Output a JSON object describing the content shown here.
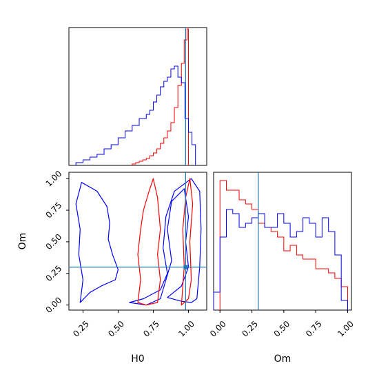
{
  "chart_data": {
    "type": "corner",
    "colors": {
      "red": "#ff0000",
      "blue": "#0000ff",
      "truth": "#1f77b4"
    },
    "truth": {
      "H0": 0.98,
      "Om": 0.3
    },
    "panels": [
      {
        "id": "hist-H0",
        "type": "histogram",
        "xlim": [
          0.15,
          1.13
        ],
        "ylim": [
          0,
          1.0
        ],
        "series": [
          {
            "color": "red",
            "bin_edges": [
              0.6,
              0.625,
              0.65,
              0.675,
              0.7,
              0.725,
              0.75,
              0.775,
              0.8,
              0.825,
              0.85,
              0.875,
              0.9,
              0.925,
              0.95,
              0.97,
              0.99,
              1.0
            ],
            "counts": [
              0.01,
              0.02,
              0.03,
              0.04,
              0.05,
              0.07,
              0.09,
              0.12,
              0.16,
              0.2,
              0.25,
              0.31,
              0.42,
              0.58,
              0.74,
              0.91,
              0.99
            ]
          },
          {
            "color": "blue",
            "bin_edges": [
              0.2,
              0.25,
              0.3,
              0.35,
              0.4,
              0.45,
              0.5,
              0.55,
              0.6,
              0.65,
              0.7,
              0.725,
              0.75,
              0.775,
              0.8,
              0.825,
              0.85,
              0.875,
              0.9,
              0.925,
              0.95,
              0.975,
              1.0,
              1.025,
              1.05
            ],
            "counts": [
              0.02,
              0.04,
              0.06,
              0.08,
              0.12,
              0.15,
              0.2,
              0.25,
              0.29,
              0.34,
              0.37,
              0.4,
              0.46,
              0.51,
              0.57,
              0.61,
              0.64,
              0.7,
              0.72,
              0.64,
              0.6,
              0.34,
              0.24,
              0.15
            ]
          }
        ]
      },
      {
        "id": "contour-H0-Om",
        "type": "contour",
        "xlim": [
          0.15,
          1.13
        ],
        "ylim": [
          -0.04,
          1.05
        ],
        "xlabel": "H0",
        "ylabel": "Om",
        "xticks": [
          "0.25",
          "0.50",
          "0.75",
          "1.00"
        ],
        "yticks": [
          "0.00",
          "0.25",
          "0.50",
          "0.75",
          "1.00"
        ],
        "blue_outer": [
          [
            0.23,
            0.02
          ],
          [
            0.3,
            0.1
          ],
          [
            0.38,
            0.15
          ],
          [
            0.48,
            0.2
          ],
          [
            0.5,
            0.28
          ],
          [
            0.46,
            0.4
          ],
          [
            0.43,
            0.52
          ],
          [
            0.44,
            0.65
          ],
          [
            0.42,
            0.78
          ],
          [
            0.35,
            0.9
          ],
          [
            0.24,
            0.97
          ],
          [
            0.2,
            0.8
          ],
          [
            0.23,
            0.6
          ],
          [
            0.22,
            0.4
          ],
          [
            0.25,
            0.2
          ],
          [
            0.23,
            0.02
          ]
        ],
        "blue_inner": [
          [
            0.58,
            0.02
          ],
          [
            0.68,
            0.05
          ],
          [
            0.8,
            0.12
          ],
          [
            0.85,
            0.25
          ],
          [
            0.82,
            0.45
          ],
          [
            0.84,
            0.7
          ],
          [
            0.9,
            0.9
          ],
          [
            1.02,
            1.0
          ],
          [
            1.08,
            0.9
          ],
          [
            1.09,
            0.6
          ],
          [
            1.08,
            0.3
          ],
          [
            1.06,
            0.05
          ],
          [
            1.02,
            0.02
          ],
          [
            0.95,
            0.03
          ],
          [
            0.85,
            0.06
          ],
          [
            0.95,
            0.15
          ],
          [
            1.0,
            0.3
          ],
          [
            0.98,
            0.5
          ],
          [
            1.0,
            0.7
          ],
          [
            0.97,
            0.92
          ],
          [
            0.88,
            0.82
          ],
          [
            0.85,
            0.6
          ],
          [
            0.88,
            0.35
          ],
          [
            0.8,
            0.05
          ],
          [
            0.7,
            0.0
          ],
          [
            0.58,
            0.02
          ]
        ],
        "red_outer": [
          [
            0.64,
            0.02
          ],
          [
            0.66,
            0.2
          ],
          [
            0.64,
            0.4
          ],
          [
            0.66,
            0.6
          ],
          [
            0.68,
            0.75
          ],
          [
            0.72,
            0.9
          ],
          [
            0.75,
            1.0
          ],
          [
            0.78,
            0.85
          ],
          [
            0.8,
            0.6
          ],
          [
            0.78,
            0.4
          ],
          [
            0.8,
            0.2
          ],
          [
            0.78,
            0.02
          ],
          [
            0.7,
            0.0
          ],
          [
            0.64,
            0.02
          ]
        ],
        "red_inner": [
          [
            0.95,
            0.0
          ],
          [
            1.0,
            0.05
          ],
          [
            1.02,
            0.2
          ],
          [
            1.01,
            0.5
          ],
          [
            1.03,
            0.8
          ],
          [
            1.01,
            1.0
          ],
          [
            0.98,
            0.85
          ],
          [
            0.96,
            0.6
          ],
          [
            0.97,
            0.3
          ],
          [
            0.95,
            0.0
          ]
        ]
      },
      {
        "id": "hist-Om",
        "type": "histogram",
        "xlim": [
          -0.05,
          1.03
        ],
        "ylim": [
          0,
          1.0
        ],
        "xlabel": "Om",
        "xticks": [
          "0.00",
          "0.25",
          "0.50",
          "0.75",
          "1.00"
        ],
        "series": [
          {
            "color": "red",
            "bin_edges": [
              0.0,
              0.05,
              0.1,
              0.15,
              0.2,
              0.25,
              0.3,
              0.35,
              0.4,
              0.45,
              0.5,
              0.55,
              0.6,
              0.65,
              0.7,
              0.75,
              0.8,
              0.85,
              0.9,
              0.95,
              1.0
            ],
            "counts": [
              0.94,
              0.87,
              0.87,
              0.8,
              0.77,
              0.73,
              0.63,
              0.6,
              0.57,
              0.53,
              0.43,
              0.47,
              0.4,
              0.37,
              0.37,
              0.3,
              0.3,
              0.27,
              0.23,
              0.17
            ]
          },
          {
            "color": "blue",
            "bin_edges": [
              -0.05,
              0.0,
              0.05,
              0.1,
              0.15,
              0.2,
              0.25,
              0.3,
              0.35,
              0.4,
              0.45,
              0.5,
              0.55,
              0.6,
              0.65,
              0.7,
              0.75,
              0.8,
              0.85,
              0.9,
              0.95,
              1.0
            ],
            "counts": [
              0.13,
              0.53,
              0.73,
              0.7,
              0.6,
              0.63,
              0.67,
              0.7,
              0.6,
              0.6,
              0.7,
              0.63,
              0.53,
              0.57,
              0.67,
              0.63,
              0.53,
              0.67,
              0.57,
              0.4,
              0.07
            ]
          }
        ]
      }
    ]
  }
}
